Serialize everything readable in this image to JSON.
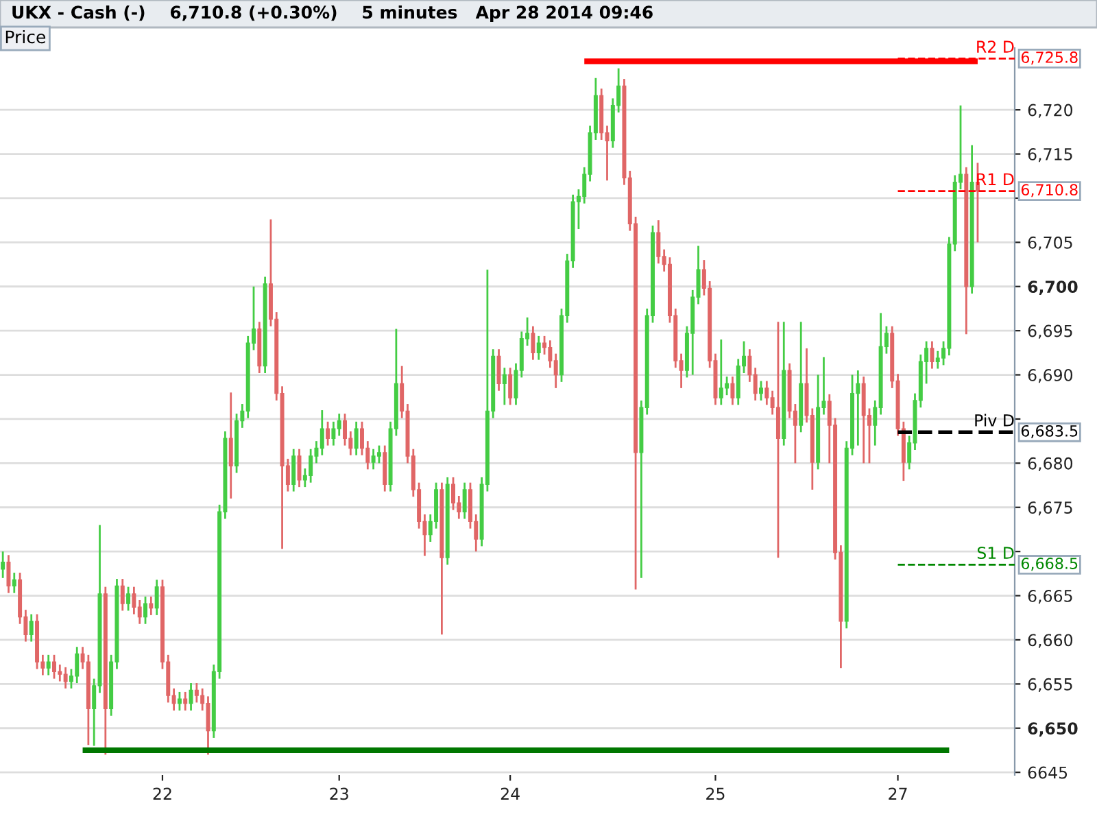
{
  "chart_data": {
    "type": "candlestick",
    "title": "UKX - Cash (-)    6,710.8 (+0.30%)    5 minutes   Apr 28 2014 09:46",
    "ylabel": "Price",
    "categories": [
      null,
      null,
      null,
      null,
      null,
      null,
      null,
      null,
      null,
      null,
      null,
      null,
      null,
      null,
      null,
      null,
      null,
      null,
      null,
      null,
      null,
      null,
      null,
      null,
      null,
      null,
      null,
      null,
      "22",
      null,
      null,
      null,
      null,
      null,
      null,
      null,
      null,
      null,
      null,
      null,
      null,
      null,
      null,
      null,
      null,
      null,
      null,
      null,
      null,
      null,
      null,
      null,
      null,
      null,
      null,
      null,
      null,
      null,
      null,
      "23",
      null,
      null,
      null,
      null,
      null,
      null,
      null,
      null,
      null,
      null,
      null,
      null,
      null,
      null,
      null,
      null,
      null,
      null,
      null,
      null,
      null,
      null,
      null,
      null,
      null,
      null,
      null,
      null,
      null,
      "24",
      null,
      null,
      null,
      null,
      null,
      null,
      null,
      null,
      null,
      null,
      null,
      null,
      null,
      null,
      null,
      null,
      null,
      null,
      null,
      null,
      null,
      null,
      null,
      null,
      null,
      null,
      null,
      null,
      null,
      null,
      null,
      null,
      null,
      null,
      null,
      "25",
      null,
      null,
      null,
      null,
      null,
      null,
      null,
      null,
      null,
      null,
      null,
      null,
      null,
      null,
      null,
      null,
      null,
      null,
      null,
      null,
      null,
      null,
      null,
      null,
      null,
      null,
      null,
      null,
      null,
      null,
      null,
      "27",
      null,
      null,
      null,
      null,
      null,
      null,
      null,
      null,
      null,
      null,
      null,
      null,
      null,
      null
    ],
    "ohlc": [
      [
        6668.0,
        6670.0,
        6667.0,
        6668.8
      ],
      [
        6668.8,
        6669.6,
        6665.3,
        6666.1
      ],
      [
        6666.1,
        6667.6,
        6665.3,
        6666.8
      ],
      [
        6666.8,
        6667.6,
        6661.8,
        6662.6
      ],
      [
        6662.6,
        6663.4,
        6659.8,
        6660.6
      ],
      [
        6660.6,
        6662.9,
        6659.8,
        6662.1
      ],
      [
        6662.1,
        6662.9,
        6656.7,
        6657.5
      ],
      [
        6657.5,
        6658.3,
        6656.0,
        6656.8
      ],
      [
        6656.8,
        6658.3,
        6656.0,
        6657.5
      ],
      [
        6657.5,
        6658.3,
        6655.6,
        6656.4
      ],
      [
        6656.4,
        6657.2,
        6655.3,
        6656.1
      ],
      [
        6656.1,
        6656.9,
        6654.5,
        6655.3
      ],
      [
        6655.3,
        6656.7,
        6654.5,
        6655.9
      ],
      [
        6655.9,
        6659.2,
        6655.1,
        6658.4
      ],
      [
        6658.4,
        6659.2,
        6656.7,
        6657.5
      ],
      [
        6657.5,
        6658.3,
        6648.1,
        6652.2
      ],
      [
        6652.2,
        6655.6,
        6648.0,
        6654.8
      ],
      [
        6654.8,
        6673.0,
        6654.0,
        6665.2
      ],
      [
        6665.2,
        6666.0,
        6647.0,
        6652.2
      ],
      [
        6652.2,
        6658.3,
        6651.4,
        6657.5
      ],
      [
        6657.5,
        6666.9,
        6656.7,
        6666.1
      ],
      [
        6666.1,
        6666.9,
        6663.3,
        6664.1
      ],
      [
        6664.1,
        6666.0,
        6663.3,
        6665.2
      ],
      [
        6665.2,
        6666.0,
        6662.9,
        6663.7
      ],
      [
        6663.7,
        6664.5,
        6661.8,
        6662.6
      ],
      [
        6662.6,
        6664.9,
        6661.8,
        6664.1
      ],
      [
        6664.1,
        6664.9,
        6662.8,
        6663.6
      ],
      [
        6663.6,
        6666.8,
        6662.8,
        6666.0
      ],
      [
        6666.0,
        6666.8,
        6656.7,
        6657.5
      ],
      [
        6657.5,
        6658.3,
        6652.9,
        6653.7
      ],
      [
        6653.7,
        6654.5,
        6652.0,
        6652.8
      ],
      [
        6652.8,
        6654.1,
        6652.0,
        6653.3
      ],
      [
        6653.3,
        6654.1,
        6652.0,
        6652.8
      ],
      [
        6652.8,
        6655.1,
        6652.0,
        6654.3
      ],
      [
        6654.3,
        6655.1,
        6652.9,
        6653.7
      ],
      [
        6653.7,
        6654.5,
        6652.0,
        6652.8
      ],
      [
        6652.8,
        6653.6,
        6647.0,
        6649.7
      ],
      [
        6649.7,
        6657.2,
        6648.9,
        6656.4
      ],
      [
        6656.4,
        6675.3,
        6655.6,
        6674.5
      ],
      [
        6674.5,
        6683.6,
        6673.7,
        6682.8
      ],
      [
        6682.8,
        6688.0,
        6676.0,
        6679.7
      ],
      [
        6679.7,
        6685.6,
        6678.9,
        6684.8
      ],
      [
        6684.8,
        6686.7,
        6684.0,
        6685.9
      ],
      [
        6685.9,
        6694.4,
        6685.1,
        6693.6
      ],
      [
        6693.6,
        6700.0,
        6692.8,
        6695.2
      ],
      [
        6695.2,
        6696.0,
        6690.2,
        6691.0
      ],
      [
        6691.0,
        6701.1,
        6690.2,
        6700.3
      ],
      [
        6700.3,
        6707.6,
        6695.5,
        6696.3
      ],
      [
        6696.3,
        6697.1,
        6687.1,
        6687.9
      ],
      [
        6687.9,
        6688.7,
        6670.3,
        6679.7
      ],
      [
        6679.7,
        6680.5,
        6676.8,
        6677.6
      ],
      [
        6677.6,
        6681.6,
        6676.8,
        6680.8
      ],
      [
        6680.8,
        6681.6,
        6677.3,
        6678.1
      ],
      [
        6678.1,
        6679.4,
        6677.3,
        6678.6
      ],
      [
        6678.6,
        6681.6,
        6677.8,
        6680.8
      ],
      [
        6680.8,
        6682.5,
        6680.0,
        6681.7
      ],
      [
        6681.7,
        6686.0,
        6680.9,
        6683.9
      ],
      [
        6683.9,
        6684.7,
        6682.0,
        6682.8
      ],
      [
        6682.8,
        6684.7,
        6682.0,
        6683.9
      ],
      [
        6683.9,
        6685.6,
        6683.1,
        6684.8
      ],
      [
        6684.8,
        6685.6,
        6682.0,
        6682.8
      ],
      [
        6682.8,
        6683.6,
        6680.9,
        6681.7
      ],
      [
        6681.7,
        6684.7,
        6680.9,
        6683.9
      ],
      [
        6683.9,
        6684.7,
        6680.9,
        6681.7
      ],
      [
        6681.7,
        6682.5,
        6679.3,
        6680.1
      ],
      [
        6680.1,
        6681.6,
        6679.3,
        6680.8
      ],
      [
        6680.8,
        6682.0,
        6680.0,
        6681.2
      ],
      [
        6681.2,
        6682.0,
        6676.8,
        6677.6
      ],
      [
        6677.6,
        6684.7,
        6676.8,
        6683.9
      ],
      [
        6683.9,
        6695.2,
        6683.1,
        6689.0
      ],
      [
        6689.0,
        6691.0,
        6685.1,
        6685.9
      ],
      [
        6685.9,
        6686.7,
        6680.0,
        6680.8
      ],
      [
        6680.8,
        6681.6,
        6676.2,
        6677.0
      ],
      [
        6677.0,
        6677.8,
        6672.6,
        6673.4
      ],
      [
        6673.4,
        6674.2,
        6669.5,
        6671.9
      ],
      [
        6671.9,
        6674.2,
        6671.1,
        6673.4
      ],
      [
        6673.4,
        6677.8,
        6672.6,
        6677.0
      ],
      [
        6677.0,
        6677.8,
        6660.6,
        6669.3
      ],
      [
        6669.3,
        6678.4,
        6668.5,
        6677.6
      ],
      [
        6677.6,
        6678.4,
        6674.7,
        6675.5
      ],
      [
        6675.5,
        6676.3,
        6673.7,
        6674.5
      ],
      [
        6674.5,
        6677.8,
        6673.7,
        6677.0
      ],
      [
        6677.0,
        6677.8,
        6672.6,
        6673.4
      ],
      [
        6673.4,
        6674.2,
        6670.0,
        6671.4
      ],
      [
        6671.4,
        6678.4,
        6670.6,
        6677.6
      ],
      [
        6677.6,
        6701.9,
        6676.8,
        6685.9
      ],
      [
        6685.9,
        6692.9,
        6685.1,
        6692.1
      ],
      [
        6692.1,
        6692.9,
        6688.2,
        6689.0
      ],
      [
        6689.0,
        6690.8,
        6686.6,
        6690.0
      ],
      [
        6690.0,
        6690.8,
        6686.6,
        6687.4
      ],
      [
        6687.4,
        6691.3,
        6686.6,
        6690.5
      ],
      [
        6690.5,
        6694.9,
        6689.7,
        6694.1
      ],
      [
        6694.1,
        6696.5,
        6693.3,
        6694.7
      ],
      [
        6694.7,
        6695.5,
        6691.7,
        6692.5
      ],
      [
        6692.5,
        6694.4,
        6691.7,
        6693.6
      ],
      [
        6693.6,
        6694.4,
        6692.3,
        6693.1
      ],
      [
        6693.1,
        6693.9,
        6690.8,
        6691.6
      ],
      [
        6691.6,
        6692.4,
        6688.5,
        6690.0
      ],
      [
        6690.0,
        6697.5,
        6689.2,
        6696.7
      ],
      [
        6696.7,
        6703.7,
        6695.9,
        6702.9
      ],
      [
        6702.9,
        6710.4,
        6702.1,
        6709.6
      ],
      [
        6709.6,
        6711.0,
        6706.5,
        6710.2
      ],
      [
        6710.2,
        6713.5,
        6709.4,
        6712.7
      ],
      [
        6712.7,
        6718.2,
        6711.9,
        6717.4
      ],
      [
        6717.4,
        6723.6,
        6716.6,
        6721.6
      ],
      [
        6721.6,
        6722.4,
        6716.6,
        6717.4
      ],
      [
        6717.4,
        6718.2,
        6712.0,
        6716.5
      ],
      [
        6716.5,
        6721.3,
        6715.7,
        6720.5
      ],
      [
        6720.5,
        6724.7,
        6719.7,
        6722.7
      ],
      [
        6722.7,
        6723.5,
        6711.5,
        6712.3
      ],
      [
        6712.3,
        6713.1,
        6706.3,
        6707.1
      ],
      [
        6707.1,
        6707.9,
        6665.7,
        6681.2
      ],
      [
        6681.2,
        6687.1,
        6667.0,
        6686.3
      ],
      [
        6686.3,
        6697.5,
        6685.5,
        6696.7
      ],
      [
        6696.7,
        6706.9,
        6695.9,
        6706.1
      ],
      [
        6706.1,
        6707.5,
        6702.6,
        6703.4
      ],
      [
        6703.4,
        6704.2,
        6701.7,
        6702.5
      ],
      [
        6702.5,
        6703.3,
        6695.9,
        6696.7
      ],
      [
        6696.7,
        6697.5,
        6690.8,
        6691.6
      ],
      [
        6691.6,
        6692.4,
        6688.5,
        6690.5
      ],
      [
        6690.5,
        6695.5,
        6689.7,
        6694.7
      ],
      [
        6694.7,
        6699.6,
        6690.0,
        6698.8
      ],
      [
        6698.8,
        6704.6,
        6698.0,
        6701.9
      ],
      [
        6701.9,
        6703.0,
        6699.0,
        6699.8
      ],
      [
        6699.8,
        6700.6,
        6690.8,
        6691.6
      ],
      [
        6691.6,
        6692.4,
        6686.6,
        6687.4
      ],
      [
        6687.4,
        6694.0,
        6686.6,
        6688.5
      ],
      [
        6688.5,
        6689.8,
        6687.7,
        6689.0
      ],
      [
        6689.0,
        6689.8,
        6686.6,
        6687.4
      ],
      [
        6687.4,
        6691.8,
        6686.6,
        6691.0
      ],
      [
        6691.0,
        6693.8,
        6690.2,
        6692.1
      ],
      [
        6692.1,
        6692.9,
        6689.2,
        6690.0
      ],
      [
        6690.0,
        6690.8,
        6687.1,
        6687.9
      ],
      [
        6687.9,
        6689.3,
        6687.1,
        6688.5
      ],
      [
        6688.5,
        6689.3,
        6686.6,
        6687.4
      ],
      [
        6687.4,
        6688.2,
        6685.5,
        6686.3
      ],
      [
        6686.3,
        6696.0,
        6669.3,
        6682.8
      ],
      [
        6682.8,
        6696.0,
        6682.0,
        6690.5
      ],
      [
        6690.5,
        6691.3,
        6685.1,
        6685.9
      ],
      [
        6685.9,
        6686.7,
        6680.0,
        6684.3
      ],
      [
        6684.3,
        6696.0,
        6683.5,
        6689.0
      ],
      [
        6689.0,
        6693.0,
        6684.6,
        6685.4
      ],
      [
        6685.4,
        6686.2,
        6677.0,
        6680.1
      ],
      [
        6680.1,
        6690.0,
        6679.3,
        6686.3
      ],
      [
        6686.3,
        6692.0,
        6685.5,
        6687.0
      ],
      [
        6687.0,
        6687.8,
        6680.0,
        6684.3
      ],
      [
        6684.3,
        6685.1,
        6669.1,
        6669.9
      ],
      [
        6669.9,
        6670.7,
        6656.8,
        6662.1
      ],
      [
        6662.1,
        6682.5,
        6661.3,
        6681.7
      ],
      [
        6681.7,
        6690.0,
        6680.9,
        6687.9
      ],
      [
        6687.9,
        6690.5,
        6682.0,
        6689.0
      ],
      [
        6689.0,
        6689.8,
        6680.0,
        6685.4
      ],
      [
        6685.4,
        6686.2,
        6680.0,
        6684.3
      ],
      [
        6684.3,
        6687.1,
        6682.0,
        6686.3
      ],
      [
        6686.3,
        6697.0,
        6685.5,
        6693.2
      ],
      [
        6693.2,
        6695.5,
        6692.4,
        6694.7
      ],
      [
        6694.7,
        6695.5,
        6688.5,
        6689.3
      ],
      [
        6689.3,
        6690.1,
        6683.1,
        6683.9
      ],
      [
        6683.9,
        6684.7,
        6678.0,
        6680.1
      ],
      [
        6680.1,
        6683.1,
        6679.3,
        6682.3
      ],
      [
        6682.3,
        6687.9,
        6681.5,
        6687.1
      ],
      [
        6687.1,
        6692.3,
        6686.3,
        6691.5
      ],
      [
        6691.5,
        6693.8,
        6689.0,
        6693.0
      ],
      [
        6693.0,
        6693.8,
        6690.7,
        6691.5
      ],
      [
        6691.5,
        6692.7,
        6690.7,
        6691.9
      ],
      [
        6691.9,
        6693.8,
        6691.1,
        6693.0
      ],
      [
        6693.0,
        6705.6,
        6692.2,
        6704.8
      ],
      [
        6704.8,
        6712.6,
        6704.0,
        6711.8
      ],
      [
        6711.8,
        6720.5,
        6711.0,
        6712.7
      ],
      [
        6712.7,
        6713.5,
        6694.6,
        6700.0
      ],
      [
        6700.0,
        6716.0,
        6699.2,
        6711.8
      ],
      [
        6711.8,
        6714.0,
        6705.0,
        6710.8
      ]
    ],
    "series": [
      {
        "type": "line",
        "color": "#007700",
        "values": [
          null,
          null,
          null,
          null,
          null,
          null,
          null,
          null,
          null,
          null,
          null,
          null,
          null,
          null,
          6647.5,
          6647.5,
          6647.5,
          6647.5,
          6647.5,
          6647.5,
          6647.5,
          6647.5,
          6647.5,
          6647.5,
          6647.5,
          6647.5,
          6647.5,
          6647.5,
          6647.5,
          6647.5,
          6647.5,
          6647.5,
          6647.5,
          6647.5,
          6647.5,
          6647.5,
          6647.5,
          6647.5,
          6647.5,
          6647.5,
          6647.5,
          6647.5,
          6647.5,
          6647.5,
          6647.5,
          6647.5,
          6647.5,
          6647.5,
          6647.5,
          6647.5,
          6647.5,
          6647.5,
          6647.5,
          6647.5,
          6647.5,
          6647.5,
          6647.5,
          6647.5,
          6647.5,
          6647.5,
          6647.5,
          6647.5,
          6647.5,
          6647.5,
          6647.5,
          6647.5,
          6647.5,
          6647.5,
          6647.5,
          6647.5,
          6647.5,
          6647.5,
          6647.5,
          6647.5,
          6647.5,
          6647.5,
          6647.5,
          6647.5,
          6647.5,
          6647.5,
          6647.5,
          6647.5,
          6647.5,
          6647.5,
          6647.5,
          6647.5,
          6647.5,
          6647.5,
          6647.5,
          6647.5,
          6647.5,
          6647.5,
          6647.5,
          6647.5,
          6647.5,
          6647.5,
          6647.5,
          6647.5,
          6647.5,
          6647.5,
          6647.5,
          6647.5,
          6647.5,
          6647.5,
          6647.5,
          6647.5,
          6647.5,
          6647.5,
          6647.5,
          6647.5,
          6647.5,
          6647.5,
          6647.5,
          6647.5,
          6647.5,
          6647.5,
          6647.5,
          6647.5,
          6647.5,
          6647.5,
          6647.5,
          6647.5,
          6647.5,
          6647.5,
          6647.5,
          6647.5,
          6647.5,
          6647.5,
          6647.5,
          6647.5,
          6647.5,
          6647.5,
          6647.5,
          6647.5,
          6647.5,
          6647.5,
          6647.5,
          6647.5,
          6647.5,
          6647.5,
          6647.5,
          6647.5,
          6647.5,
          6647.5,
          6647.5,
          6647.5,
          6647.5,
          6647.5,
          6647.5,
          6647.5,
          6647.5,
          6647.5,
          6647.5,
          6647.5,
          6647.5,
          6647.5,
          6647.5,
          6647.5,
          6647.5,
          6647.5,
          6647.5,
          6647.5,
          6647.5,
          6647.5,
          6647.5,
          6647.5,
          6647.5,
          null,
          null,
          null,
          null,
          null
        ]
      },
      {
        "type": "line",
        "color": "#ff0000",
        "values": [
          null,
          null,
          null,
          null,
          null,
          null,
          null,
          null,
          null,
          null,
          null,
          null,
          null,
          null,
          null,
          null,
          null,
          null,
          null,
          null,
          null,
          null,
          null,
          null,
          null,
          null,
          null,
          null,
          null,
          null,
          null,
          null,
          null,
          null,
          null,
          null,
          null,
          null,
          null,
          null,
          null,
          null,
          null,
          null,
          null,
          null,
          null,
          null,
          null,
          null,
          null,
          null,
          null,
          null,
          null,
          null,
          null,
          null,
          null,
          null,
          null,
          null,
          null,
          null,
          null,
          null,
          null,
          null,
          null,
          null,
          null,
          null,
          null,
          null,
          null,
          null,
          null,
          null,
          null,
          null,
          null,
          null,
          null,
          null,
          null,
          null,
          null,
          null,
          null,
          null,
          null,
          null,
          null,
          null,
          null,
          null,
          null,
          null,
          null,
          null,
          null,
          null,
          6725.5,
          6725.5,
          6725.5,
          6725.5,
          6725.5,
          6725.5,
          6725.5,
          6725.5,
          6725.5,
          6725.5,
          6725.5,
          6725.5,
          6725.5,
          6725.5,
          6725.5,
          6725.5,
          6725.5,
          6725.5,
          6725.5,
          6725.5,
          6725.5,
          6725.5,
          6725.5,
          6725.5,
          6725.5,
          6725.5,
          6725.5,
          6725.5,
          6725.5,
          6725.5,
          6725.5,
          6725.5,
          6725.5,
          6725.5,
          6725.5,
          6725.5,
          6725.5,
          6725.5,
          6725.5,
          6725.5,
          6725.5,
          6725.5,
          6725.5,
          6725.5,
          6725.5,
          6725.5,
          6725.5,
          6725.5,
          6725.5,
          6725.5,
          6725.5,
          6725.5,
          6725.5,
          6725.5,
          6725.5,
          6725.5,
          6725.5,
          6725.5,
          6725.5,
          6725.5,
          6725.5,
          6725.5,
          6725.5,
          6725.5,
          6725.5,
          6725.5,
          6725.5,
          6725.5,
          6725.5,
          6725.5
        ]
      }
    ],
    "ylim": [
      6644.7,
      6727.0
    ],
    "yticks": [
      6645,
      {
        "value": 6650,
        "label": "6,650"
      },
      {
        "value": 6655,
        "label": "6,655"
      },
      {
        "value": 6660,
        "label": "6,660"
      },
      {
        "value": 6665,
        "label": "6,665"
      },
      {
        "value": 6670,
        "label": null
      },
      {
        "value": 6675,
        "label": "6,675"
      },
      {
        "value": 6680,
        "label": "6,680"
      },
      {
        "value": 6685,
        "label": null
      },
      {
        "value": 6690,
        "label": "6,690"
      },
      {
        "value": 6695,
        "label": "6,695"
      },
      {
        "value": 6700,
        "label": "6,700"
      },
      {
        "value": 6705,
        "label": "6,705"
      },
      {
        "value": 6710,
        "label": null
      },
      {
        "value": 6715,
        "label": "6,715"
      },
      {
        "value": 6720,
        "label": "6,720"
      }
    ],
    "grid": "y",
    "ref_lines": [
      {
        "axis": "y",
        "value": 6725.8,
        "label": "R2 D",
        "color": "#ff0000",
        "line_style": "dashed"
      },
      {
        "axis": "y",
        "value": 6710.8,
        "label": "R1 D",
        "color": "#ff0000",
        "line_style": "dashed"
      },
      {
        "axis": "y",
        "value": 6683.5,
        "label": "Piv D",
        "color": "#000000",
        "line_style": "dashed"
      },
      {
        "axis": "y",
        "value": 6668.5,
        "label": "S1 D",
        "color": "#008800",
        "line_style": "dashed"
      }
    ],
    "annotations": [
      "6,725.8",
      "6,710.8",
      "6,683.5",
      "6,668.5"
    ]
  }
}
